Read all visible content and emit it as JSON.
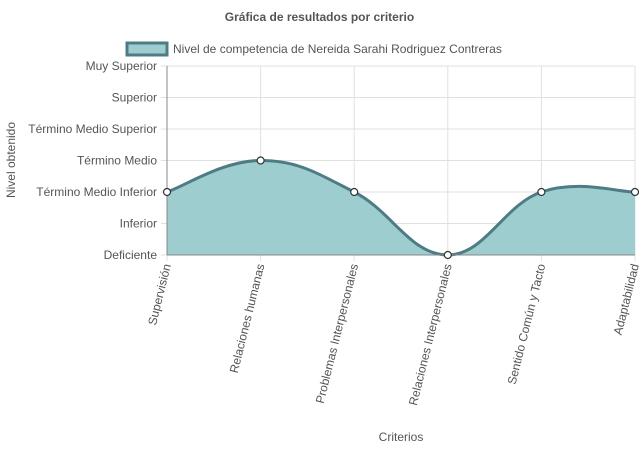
{
  "chart_data": {
    "type": "area",
    "title": "Gráfica de resultados por criterio",
    "xlabel": "Criterios",
    "ylabel": "Nivel obtenido",
    "categories": [
      "Supervisión",
      "Relaciones humanas",
      "Problemas Interpersonales",
      "Relaciones Interpersonales",
      "Sentido Común y Tacto",
      "Adaptabilidad"
    ],
    "y_levels": [
      "Deficiente",
      "Inferior",
      "Término Medio Inferior",
      "Término Medio",
      "Término Medio Superior",
      "Superior",
      "Muy Superior"
    ],
    "ylim": [
      0,
      6
    ],
    "series": [
      {
        "name": "Nivel de competencia de Nereida Sarahi Rodriguez Contreras",
        "values": [
          2,
          3,
          2,
          0,
          2,
          2
        ]
      }
    ],
    "grid": true,
    "legend_position": "top",
    "colors": {
      "fill": "#9ecdd0",
      "line": "#4d7c84",
      "grid": "#e0e0e0",
      "axis": "#888888",
      "text": "#555555"
    }
  }
}
